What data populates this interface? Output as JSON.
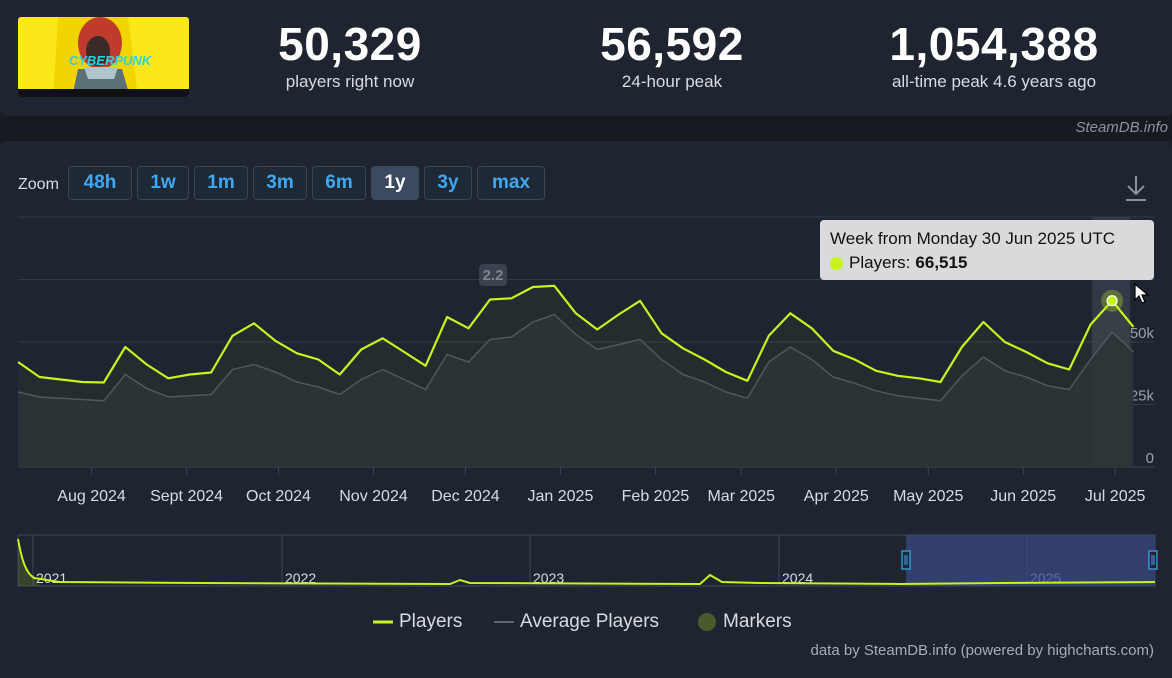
{
  "header": {
    "game_logo_text": "CYBERPUNK",
    "stats": [
      {
        "value": "50,329",
        "label": "players right now"
      },
      {
        "value": "56,592",
        "label": "24-hour peak"
      },
      {
        "value": "1,054,388",
        "label": "all-time peak 4.6 years ago"
      }
    ],
    "credit": "SteamDB.info"
  },
  "zoom": {
    "label": "Zoom",
    "buttons": [
      "48h",
      "1w",
      "1m",
      "3m",
      "6m",
      "1y",
      "3y",
      "max"
    ],
    "active": "1y"
  },
  "tooltip": {
    "title": "Week from Monday 30 Jun 2025 UTC",
    "series_label": "Players:",
    "value": "66,515"
  },
  "legend": [
    "Players",
    "Average Players",
    "Markers"
  ],
  "credit_bottom": "data by SteamDB.info (powered by highcharts.com)",
  "colors": {
    "players": "#c8f31d",
    "average": "#4a5260",
    "marker": "#4b5a2c",
    "navigator_mask": "#3a4780",
    "accent_blue": "#3da9f5"
  },
  "chart_data": {
    "type": "line",
    "ylim": [
      0,
      100000
    ],
    "yticks": [
      "0",
      "25k",
      "50k",
      "75k"
    ],
    "xticks": [
      "Aug 2024",
      "Sept 2024",
      "Oct 2024",
      "Nov 2024",
      "Dec 2024",
      "Jan 2025",
      "Feb 2025",
      "Mar 2025",
      "Apr 2025",
      "May 2025",
      "Jun 2025",
      "Jul 2025"
    ],
    "x_start": "2024-07-08",
    "x_end": "2025-07-14",
    "marker_label": "2.2",
    "marker_date": "2024-12-10",
    "series": [
      {
        "name": "Players",
        "x": [
          "2024-07-08",
          "2024-07-15",
          "2024-07-22",
          "2024-07-29",
          "2024-08-05",
          "2024-08-12",
          "2024-08-19",
          "2024-08-26",
          "2024-09-02",
          "2024-09-09",
          "2024-09-16",
          "2024-09-23",
          "2024-09-30",
          "2024-10-07",
          "2024-10-14",
          "2024-10-21",
          "2024-10-28",
          "2024-11-04",
          "2024-11-11",
          "2024-11-18",
          "2024-11-25",
          "2024-12-02",
          "2024-12-09",
          "2024-12-16",
          "2024-12-23",
          "2024-12-30",
          "2025-01-06",
          "2025-01-13",
          "2025-01-20",
          "2025-01-27",
          "2025-02-03",
          "2025-02-10",
          "2025-02-17",
          "2025-02-24",
          "2025-03-03",
          "2025-03-10",
          "2025-03-17",
          "2025-03-24",
          "2025-03-31",
          "2025-04-07",
          "2025-04-14",
          "2025-04-21",
          "2025-04-28",
          "2025-05-05",
          "2025-05-12",
          "2025-05-19",
          "2025-05-26",
          "2025-06-02",
          "2025-06-09",
          "2025-06-16",
          "2025-06-23",
          "2025-06-30",
          "2025-07-07"
        ],
        "values": [
          42000,
          36000,
          35000,
          34000,
          33800,
          48000,
          41000,
          35500,
          37000,
          37800,
          52500,
          57500,
          50500,
          45500,
          43000,
          37000,
          47000,
          51500,
          46000,
          40500,
          60000,
          55500,
          67000,
          67500,
          72000,
          72500,
          61500,
          55000,
          61000,
          66500,
          53500,
          47500,
          43000,
          38000,
          34500,
          52500,
          61500,
          55500,
          46500,
          43000,
          38500,
          36500,
          35500,
          34000,
          48000,
          58000,
          50000,
          46000,
          41500,
          39000,
          57000,
          66515,
          56000
        ]
      },
      {
        "name": "Average Players",
        "x": [
          "2024-07-08",
          "2024-07-15",
          "2024-07-22",
          "2024-07-29",
          "2024-08-05",
          "2024-08-12",
          "2024-08-19",
          "2024-08-26",
          "2024-09-02",
          "2024-09-09",
          "2024-09-16",
          "2024-09-23",
          "2024-09-30",
          "2024-10-07",
          "2024-10-14",
          "2024-10-21",
          "2024-10-28",
          "2024-11-04",
          "2024-11-11",
          "2024-11-18",
          "2024-11-25",
          "2024-12-02",
          "2024-12-09",
          "2024-12-16",
          "2024-12-23",
          "2024-12-30",
          "2025-01-06",
          "2025-01-13",
          "2025-01-20",
          "2025-01-27",
          "2025-02-03",
          "2025-02-10",
          "2025-02-17",
          "2025-02-24",
          "2025-03-03",
          "2025-03-10",
          "2025-03-17",
          "2025-03-24",
          "2025-03-31",
          "2025-04-07",
          "2025-04-14",
          "2025-04-21",
          "2025-04-28",
          "2025-05-05",
          "2025-05-12",
          "2025-05-19",
          "2025-05-26",
          "2025-06-02",
          "2025-06-09",
          "2025-06-16",
          "2025-06-23",
          "2025-06-30",
          "2025-07-07"
        ],
        "values": [
          30000,
          28000,
          27500,
          27000,
          26500,
          37000,
          31500,
          28000,
          28500,
          29000,
          39000,
          41000,
          38000,
          34000,
          32000,
          29000,
          35000,
          39000,
          35000,
          31000,
          45000,
          42000,
          51000,
          52000,
          58000,
          61000,
          53000,
          47000,
          49000,
          51000,
          43000,
          37000,
          34000,
          30000,
          27500,
          42000,
          48000,
          43000,
          36000,
          33500,
          30500,
          28500,
          27500,
          26500,
          36500,
          44000,
          38500,
          36000,
          32500,
          31000,
          43000,
          54000,
          46000
        ]
      }
    ],
    "navigator": {
      "xticks": [
        "2021",
        "2022",
        "2023",
        "2024",
        "2025"
      ],
      "selection": [
        "2024-07-08",
        "2025-07-14"
      ]
    }
  }
}
